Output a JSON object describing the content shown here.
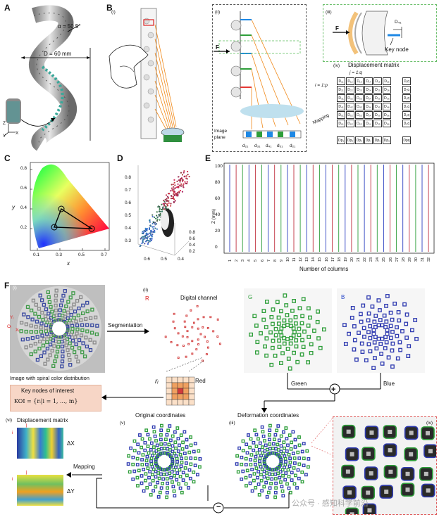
{
  "panels": {
    "A": "A",
    "B": "B",
    "C": "C",
    "D": "D",
    "E": "E",
    "F": "F"
  },
  "A": {
    "alpha": "α = 50.5°",
    "diameter": "D = 60 mm",
    "axes": {
      "z": "Z",
      "y": "Y",
      "x": "X"
    }
  },
  "B": {
    "sub_i": "(i)",
    "sub_ii": "(ii)",
    "sub_iii": "(iii)",
    "sub_iv": "(iv)",
    "force": "F",
    "force2": "F",
    "image_plane": "Image\nplane",
    "image_plane_l1": "Image",
    "image_plane_l2": "plane",
    "d_labels": [
      "d₂₁",
      "d₃₁",
      "d₄₁",
      "d₅₁",
      "d₂₁"
    ],
    "key_node": "Key node",
    "d41": "D₄₁",
    "mapping": "Mapping",
    "displacement_matrix": "Displacement matrix",
    "j_label": "j = 1:q",
    "i_label": "i = 1:p",
    "matrix_rows": [
      [
        "D₁₁",
        "D₁₂",
        "D₁₃",
        "D₁₄",
        "D₁₅",
        "D₁₆",
        "D₁q"
      ],
      [
        "D₂₁",
        "D₂₂",
        "D₂₃",
        "D₂₄",
        "D₂₅",
        "D₂₆",
        "D₂q"
      ],
      [
        "D₃₁",
        "D₃₂",
        "D₃₃",
        "D₃₄",
        "D₃₅",
        "D₃₆",
        "D₃q"
      ],
      [
        "D₄₁",
        "D₄₂",
        "D₄₃",
        "D₄₄",
        "D₄₅",
        "D₄₆",
        "D₄q"
      ],
      [
        "D₅₁",
        "D₅₂",
        "D₅₃",
        "D₅₄",
        "D₅₅",
        "D₅₆",
        "D₅q"
      ],
      [
        "D₆₁",
        "D₆₂",
        "D₆₃",
        "D₆₄",
        "D₆₅",
        "D₆₆",
        "D₆q"
      ],
      [
        "Dp₁",
        "Dp₂",
        "Dp₃",
        "Dp₄",
        "Dp₅",
        "Dp₆",
        "Dpq"
      ]
    ]
  },
  "C": {
    "yticks": [
      "0.8",
      "0.6",
      "0.4",
      "0.2"
    ],
    "xticks": [
      "0.1",
      "0.3",
      "0.5",
      "0.7"
    ],
    "xlabel": "x",
    "ylabel": "y"
  },
  "D": {
    "left_ticks": [
      "0.8",
      "0.7",
      "0.6",
      "0.5",
      "0.4",
      "0.3"
    ],
    "right_ticks": [
      "0.8",
      "0.6",
      "0.4",
      "0.2"
    ],
    "bottom_ticks": [
      "0.6",
      "0.5",
      "0.4"
    ]
  },
  "E": {
    "ylabel": "Z (mm)",
    "xlabel": "Number of columns",
    "yticks": [
      "100",
      "80",
      "60",
      "40",
      "20",
      "0"
    ],
    "xticks": [
      "1",
      "2",
      "3",
      "4",
      "5",
      "6",
      "7",
      "8",
      "9",
      "10",
      "11",
      "12",
      "13",
      "14",
      "15",
      "16",
      "17",
      "18",
      "19",
      "20",
      "21",
      "22",
      "23",
      "24",
      "25",
      "26",
      "27",
      "28",
      "29",
      "30",
      "31",
      "32"
    ]
  },
  "F": {
    "sub_i": "(i)",
    "sub_ii": "(ii)",
    "sub_iii": "(iii)",
    "sub_iv": "(iv)",
    "sub_v": "(v)",
    "sub_vi": "(vi)",
    "segmentation": "Segmentation",
    "caption_i": "Image with spiral color distribution",
    "digital_channel": "Digital channel",
    "R": "R",
    "G": "G",
    "B": "B",
    "red": "Red",
    "green": "Green",
    "blue": "Blue",
    "key_nodes_title": "Key nodes of interest",
    "koi_formula": "KOI = {rᵢ|i = 1, ..., m}",
    "r_i": "rᵢ",
    "original_coordinates": "Original coordinates",
    "deformation_coordinates": "Deformation coordinates",
    "displacement_matrix": "Displacement matrix",
    "mapping": "Mapping",
    "dX": "ΔX",
    "dY": "ΔY",
    "j_marks": [
      "j",
      "j"
    ],
    "i_marks": [
      "i",
      "i"
    ],
    "axis_yi": "Yᵢ",
    "axis_xi": "Xᵢ",
    "axis_oi": "Oᵢ",
    "axis_y": "Y",
    "axis_x": "X",
    "plus": "+",
    "minus": "−",
    "watermark": "公众号 · 感知科学前沿"
  }
}
